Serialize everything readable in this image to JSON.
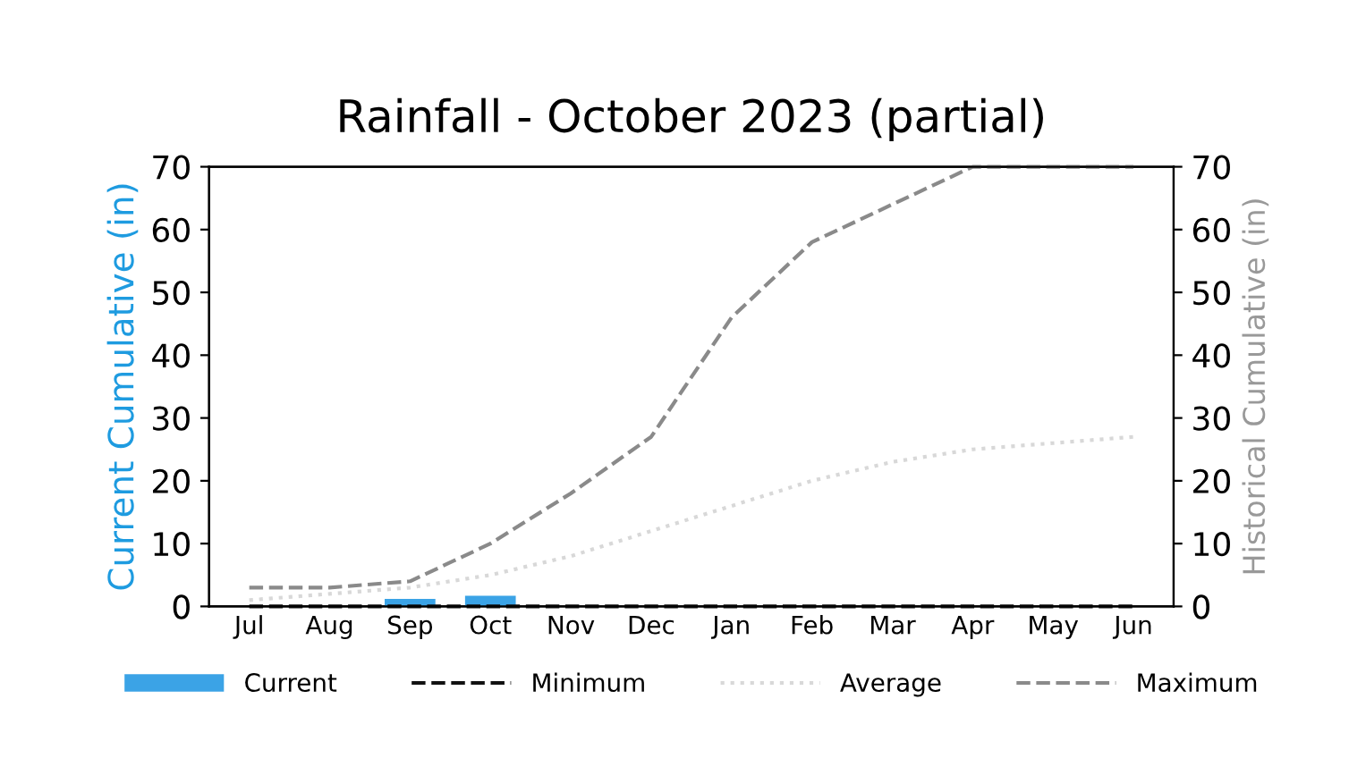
{
  "chart_data": {
    "type": "bar",
    "title": "Rainfall - October 2023 (partial)",
    "ylabel": "Current Cumulative (in)",
    "y2label": "Historical Cumulative (in)",
    "categories": [
      "Jul",
      "Aug",
      "Sep",
      "Oct",
      "Nov",
      "Dec",
      "Jan",
      "Feb",
      "Mar",
      "Apr",
      "May",
      "Jun"
    ],
    "series": [
      {
        "name": "Current",
        "color": "#3ba3e6",
        "values": [
          null,
          null,
          1,
          1.5,
          null,
          null,
          null,
          null,
          null,
          null,
          null,
          null
        ]
      },
      {
        "name": "Minimum",
        "type": "line",
        "axis": "y2",
        "color": "#111111",
        "line_style": "dashed",
        "values": [
          0,
          0,
          0,
          0,
          0,
          0,
          0,
          0,
          0,
          0,
          0,
          0
        ]
      },
      {
        "name": "Average",
        "type": "line",
        "axis": "y2",
        "color": "#d8d8d8",
        "line_style": "dotted",
        "values": [
          1,
          2,
          3,
          5,
          8,
          12,
          16,
          20,
          23,
          25,
          26,
          27
        ]
      },
      {
        "name": "Maximum",
        "type": "line",
        "axis": "y2",
        "color": "#8a8a8a",
        "line_style": "dashed",
        "values": [
          3,
          3,
          4,
          10,
          18,
          27,
          46,
          58,
          64,
          70,
          70,
          70
        ]
      }
    ],
    "ylim": [
      0,
      70
    ],
    "yticks": [
      0,
      10,
      20,
      30,
      40,
      50,
      60,
      70
    ],
    "y2lim": [
      0,
      70
    ],
    "y2ticks": [
      0,
      10,
      20,
      30,
      40,
      50,
      60,
      70
    ],
    "legend": "bottom",
    "grid": false
  }
}
